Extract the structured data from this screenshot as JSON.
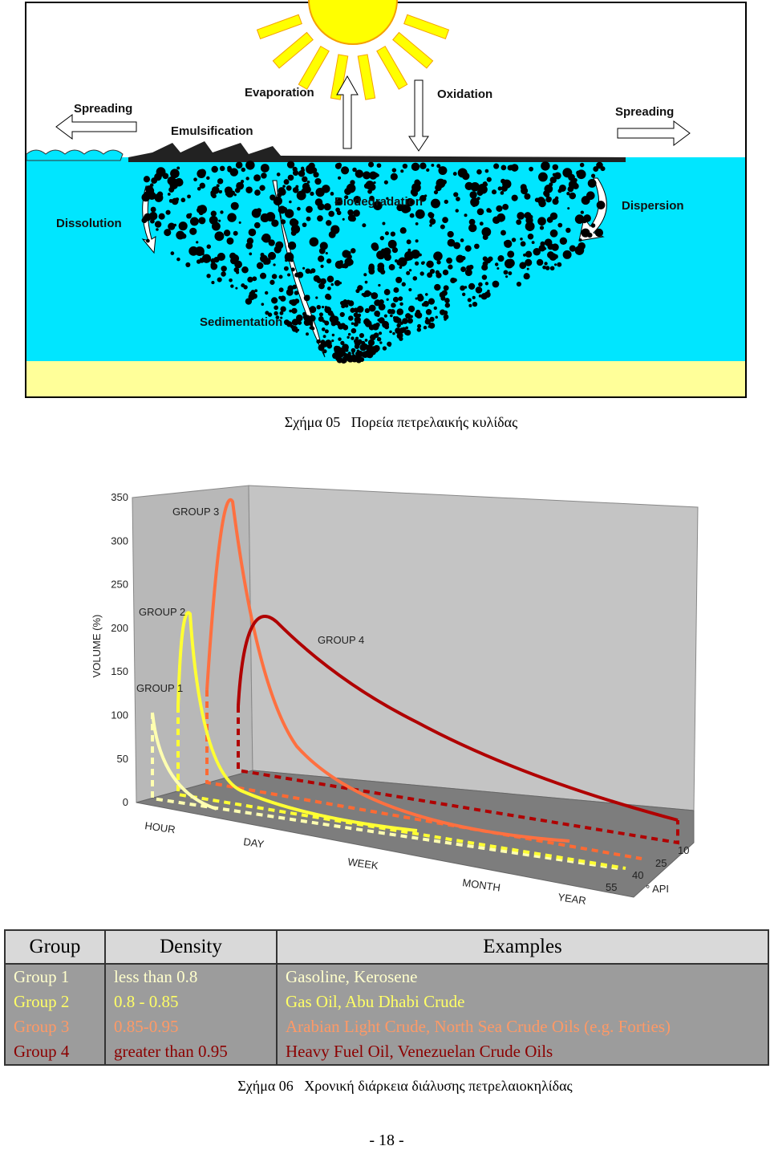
{
  "figure_1": {
    "labels": [
      "Spreading",
      "Evaporation",
      "Oxidation",
      "Spreading",
      "Emulsification",
      "Dissolution",
      "Biodegradation",
      "Dispersion",
      "Sedimentation"
    ],
    "caption": "Σχήμα 05   Πορεία πετρελαικής κυλίδας"
  },
  "figure_2": {
    "y_axis_label": "VOLUME (%)",
    "y_ticks": [
      "350",
      "300",
      "250",
      "200",
      "150",
      "100",
      "50",
      "0"
    ],
    "groups": [
      "GROUP 1",
      "GROUP 2",
      "GROUP 3",
      "GROUP 4"
    ],
    "x_labels": [
      "HOUR",
      "DAY",
      "WEEK",
      "MONTH",
      "YEAR"
    ],
    "api_ticks": [
      "10",
      "25",
      "40",
      "55"
    ],
    "api_label": "° API"
  },
  "table": {
    "header": [
      "Group",
      "Density",
      "Examples"
    ],
    "rows": [
      [
        "Group 1",
        "less than 0.8",
        "Gasoline, Kerosene"
      ],
      [
        "Group 2",
        "0.8 - 0.85",
        "Gas Oil, Abu Dhabi Crude"
      ],
      [
        "Group 3",
        "0.85-0.95",
        "Arabian Light Crude, North Sea Crude Oils (e.g. Forties)"
      ],
      [
        "Group 4",
        "greater than 0.95",
        "Heavy Fuel Oil, Venezuelan Crude Oils"
      ]
    ]
  },
  "caption_2": "Σχήμα 06   Χρονική διάρκεια διάλυσης πετρελαιοκηλίδας",
  "page_number": "- 18 -"
}
